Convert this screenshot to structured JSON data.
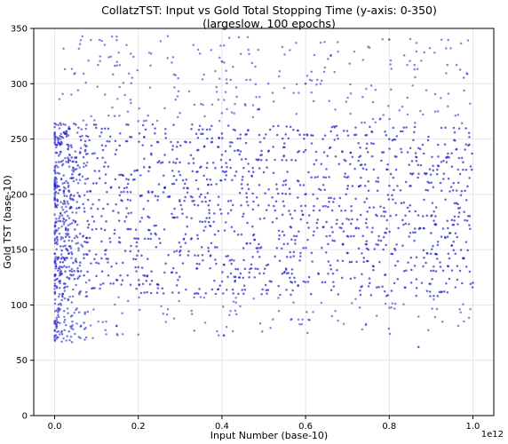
{
  "chart_data": {
    "type": "scatter",
    "title_lines": [
      "CollatzTST: Input vs Gold Total Stopping Time (y-axis: 0-350)",
      "(largeslow, 100 epochs)"
    ],
    "xlabel": "Input Number (base-10)",
    "ylabel": "Gold TST (base-10)",
    "x_offset_text": "1e12",
    "x_scale_exponent": 12,
    "xlim": [
      -0.05,
      1.05
    ],
    "ylim": [
      0,
      350
    ],
    "xticks": [
      0.0,
      0.2,
      0.4,
      0.6,
      0.8,
      1.0
    ],
    "xtick_labels": [
      "0.0",
      "0.2",
      "0.4",
      "0.6",
      "0.8",
      "1.0"
    ],
    "yticks": [
      0,
      50,
      100,
      150,
      200,
      250,
      300,
      350
    ],
    "ytick_labels": [
      "0",
      "50",
      "100",
      "150",
      "200",
      "250",
      "300",
      "350"
    ],
    "grid": true,
    "marker_color": "#1f1fc8",
    "series": [
      {
        "x_range": [
          0.0,
          1.0
        ],
        "y_min_at_x0": 66,
        "y_min_at_x1": 85,
        "y_max": 350,
        "notes_values": {
          "dense_band_low_at_x1": 110,
          "dense_band_high_at_x1": 265,
          "bands_y_start": 70,
          "bands_y_end": 345
        }
      }
    ],
    "sample_points": [
      [
        0.0,
        72
      ],
      [
        0.01,
        95
      ],
      [
        0.02,
        110
      ],
      [
        0.03,
        125
      ],
      [
        0.05,
        140
      ],
      [
        0.06,
        198
      ],
      [
        0.08,
        170
      ],
      [
        0.1,
        210
      ],
      [
        0.14,
        185
      ],
      [
        0.2,
        160
      ],
      [
        0.25,
        230
      ],
      [
        0.3,
        145
      ],
      [
        0.35,
        200
      ],
      [
        0.4,
        255
      ],
      [
        0.45,
        180
      ],
      [
        0.5,
        220
      ],
      [
        0.55,
        130
      ],
      [
        0.6,
        240
      ],
      [
        0.65,
        175
      ],
      [
        0.7,
        205
      ],
      [
        0.75,
        150
      ],
      [
        0.8,
        250
      ],
      [
        0.85,
        190
      ],
      [
        0.87,
        62
      ],
      [
        0.9,
        165
      ],
      [
        0.95,
        225
      ],
      [
        1.0,
        120
      ],
      [
        0.4,
        320
      ],
      [
        0.6,
        300
      ],
      [
        0.8,
        340
      ]
    ]
  }
}
